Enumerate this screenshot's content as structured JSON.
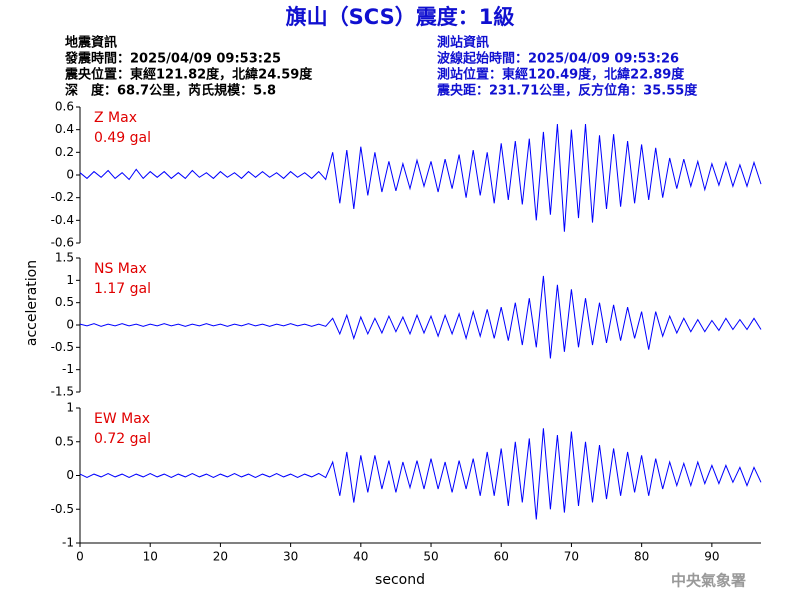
{
  "header": {
    "title": "旗山（SCS）震度：1級",
    "left": [
      "地震資訊",
      "發震時間：2025/04/09 09:53:25",
      "震央位置：東經121.82度，北緯24.59度",
      "深　度：68.7公里，芮氏規模：5.8"
    ],
    "right": [
      "測站資訊",
      "波線起始時間：2025/04/09 09:53:26",
      "測站位置：東經120.49度，北緯22.89度",
      "震央距：231.71公里，反方位角：35.55度"
    ]
  },
  "footer": "中央氣象署",
  "chart_data": {
    "type": "line",
    "xlabel": "second",
    "ylabel": "acceleration",
    "color": "#0000ff",
    "xlim": [
      0,
      97
    ],
    "xticks": [
      0,
      10,
      20,
      30,
      40,
      50,
      60,
      70,
      80,
      90
    ],
    "x": [
      0,
      1,
      2,
      3,
      4,
      5,
      6,
      7,
      8,
      9,
      10,
      11,
      12,
      13,
      14,
      15,
      16,
      17,
      18,
      19,
      20,
      21,
      22,
      23,
      24,
      25,
      26,
      27,
      28,
      29,
      30,
      31,
      32,
      33,
      34,
      35,
      36,
      37,
      38,
      39,
      40,
      41,
      42,
      43,
      44,
      45,
      46,
      47,
      48,
      49,
      50,
      51,
      52,
      53,
      54,
      55,
      56,
      57,
      58,
      59,
      60,
      61,
      62,
      63,
      64,
      65,
      66,
      67,
      68,
      69,
      70,
      71,
      72,
      73,
      74,
      75,
      76,
      77,
      78,
      79,
      80,
      81,
      82,
      83,
      84,
      85,
      86,
      87,
      88,
      89,
      90,
      91,
      92,
      93,
      94,
      95,
      96,
      97
    ],
    "panels": [
      {
        "name": "Z Max",
        "max_label": "0.49 gal",
        "ylim": [
          -0.6,
          0.6
        ],
        "yticks": [
          0.6,
          0.4,
          0.2,
          0,
          -0.2,
          -0.4,
          -0.6
        ],
        "values": [
          0.02,
          -0.03,
          0.03,
          -0.02,
          0.04,
          -0.03,
          0.02,
          -0.04,
          0.05,
          -0.03,
          0.03,
          -0.02,
          0.03,
          -0.03,
          0.02,
          -0.03,
          0.04,
          -0.02,
          0.02,
          -0.03,
          0.03,
          -0.02,
          0.02,
          -0.03,
          0.03,
          -0.02,
          0.03,
          -0.02,
          0.02,
          -0.03,
          0.03,
          -0.02,
          0.02,
          -0.03,
          0.03,
          -0.04,
          0.2,
          -0.25,
          0.22,
          -0.3,
          0.25,
          -0.18,
          0.2,
          -0.15,
          0.12,
          -0.14,
          0.1,
          -0.12,
          0.13,
          -0.1,
          0.12,
          -0.15,
          0.14,
          -0.12,
          0.18,
          -0.2,
          0.22,
          -0.18,
          0.2,
          -0.25,
          0.28,
          -0.22,
          0.3,
          -0.26,
          0.32,
          -0.4,
          0.38,
          -0.35,
          0.45,
          -0.5,
          0.4,
          -0.38,
          0.45,
          -0.42,
          0.35,
          -0.3,
          0.36,
          -0.28,
          0.3,
          -0.25,
          0.27,
          -0.22,
          0.24,
          -0.2,
          0.15,
          -0.12,
          0.14,
          -0.1,
          0.12,
          -0.13,
          0.1,
          -0.09,
          0.11,
          -0.1,
          0.09,
          -0.1,
          0.11,
          -0.08
        ]
      },
      {
        "name": "NS Max",
        "max_label": "1.17 gal",
        "ylim": [
          -1.5,
          1.5
        ],
        "yticks": [
          1.5,
          1,
          0.5,
          0,
          -0.5,
          -1,
          -1.5
        ],
        "values": [
          0.02,
          -0.02,
          0.03,
          -0.03,
          0.02,
          -0.02,
          0.03,
          -0.02,
          0.02,
          -0.03,
          0.02,
          -0.02,
          0.03,
          -0.02,
          0.02,
          -0.03,
          0.02,
          -0.02,
          0.03,
          -0.02,
          0.02,
          -0.03,
          0.02,
          -0.02,
          0.03,
          -0.02,
          0.02,
          -0.03,
          0.02,
          -0.02,
          0.03,
          -0.02,
          0.02,
          -0.03,
          0.02,
          -0.03,
          0.15,
          -0.2,
          0.22,
          -0.3,
          0.18,
          -0.2,
          0.15,
          -0.18,
          0.2,
          -0.15,
          0.18,
          -0.2,
          0.22,
          -0.18,
          0.2,
          -0.25,
          0.22,
          -0.2,
          0.25,
          -0.3,
          0.3,
          -0.25,
          0.35,
          -0.3,
          0.4,
          -0.35,
          0.5,
          -0.45,
          0.6,
          -0.5,
          1.1,
          -0.75,
          0.9,
          -0.6,
          0.8,
          -0.5,
          0.6,
          -0.45,
          0.5,
          -0.4,
          0.45,
          -0.35,
          0.4,
          -0.3,
          0.3,
          -0.55,
          0.3,
          -0.25,
          0.2,
          -0.18,
          0.15,
          -0.15,
          0.12,
          -0.15,
          0.1,
          -0.12,
          0.15,
          -0.1,
          0.12,
          -0.1,
          0.15,
          -0.1
        ]
      },
      {
        "name": "EW Max",
        "max_label": "0.72 gal",
        "ylim": [
          -1,
          1
        ],
        "yticks": [
          1,
          0.5,
          0,
          -0.5,
          -1
        ],
        "values": [
          0.02,
          -0.03,
          0.02,
          -0.02,
          0.03,
          -0.02,
          0.02,
          -0.03,
          0.02,
          -0.02,
          0.03,
          -0.02,
          0.02,
          -0.03,
          0.02,
          -0.02,
          0.03,
          -0.02,
          0.02,
          -0.03,
          0.02,
          -0.02,
          0.03,
          -0.02,
          0.02,
          -0.03,
          0.02,
          -0.02,
          0.03,
          -0.02,
          0.02,
          -0.03,
          0.02,
          -0.02,
          0.03,
          -0.03,
          0.2,
          -0.3,
          0.35,
          -0.4,
          0.3,
          -0.25,
          0.3,
          -0.2,
          0.22,
          -0.25,
          0.2,
          -0.18,
          0.22,
          -0.2,
          0.25,
          -0.2,
          0.2,
          -0.25,
          0.22,
          -0.2,
          0.25,
          -0.3,
          0.35,
          -0.3,
          0.4,
          -0.45,
          0.5,
          -0.4,
          0.55,
          -0.65,
          0.7,
          -0.5,
          0.6,
          -0.55,
          0.65,
          -0.45,
          0.5,
          -0.4,
          0.45,
          -0.35,
          0.4,
          -0.3,
          0.35,
          -0.25,
          0.3,
          -0.3,
          0.25,
          -0.2,
          0.2,
          -0.15,
          0.18,
          -0.15,
          0.2,
          -0.12,
          0.15,
          -0.12,
          0.15,
          -0.1,
          0.12,
          -0.15,
          0.12,
          -0.1
        ]
      }
    ]
  }
}
